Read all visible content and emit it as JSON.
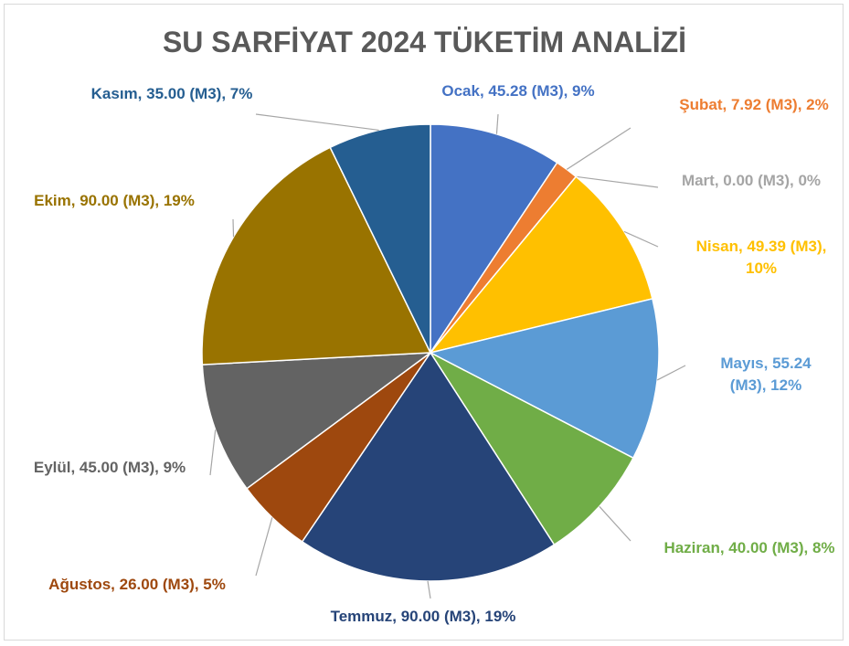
{
  "chart_data": {
    "type": "pie",
    "title": "SU SARFİYAT 2024 TÜKETİM ANALİZİ",
    "categories": [
      "Ocak",
      "Şubat",
      "Mart",
      "Nisan",
      "Mayıs",
      "Haziran",
      "Temmuz",
      "Ağustos",
      "Eylül",
      "Ekim",
      "Kasım"
    ],
    "values": [
      45.28,
      7.92,
      0,
      49.39,
      55.24,
      40,
      90,
      26,
      45,
      90,
      35
    ],
    "value_labels": [
      "Ocak, 45.28 (M3), 9%",
      "Şubat, 7.92 (M3), 2%",
      "Mart, 0.00 (M3), 0%",
      "Nisan, 49.39 (M3), 10%",
      "Mayıs, 55.24 (M3), 12%",
      "Haziran, 40.00 (M3), 8%",
      "Temmuz, 90.00 (M3), 19%",
      "Ağustos, 26.00 (M3), 5%",
      "Eylül, 45.00 (M3), 9%",
      "Ekim, 90.00 (M3), 19%",
      "Kasım, 35.00 (M3), 7%"
    ],
    "colors": [
      "#4472c4",
      "#ed7d31",
      "#a5a5a5",
      "#ffc000",
      "#5b9bd5",
      "#70ad47",
      "#264478",
      "#9e480e",
      "#636363",
      "#997300",
      "#255e91"
    ]
  }
}
